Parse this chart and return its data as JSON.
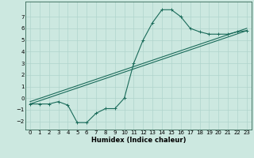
{
  "title": "",
  "xlabel": "Humidex (Indice chaleur)",
  "bg_color": "#cce8e0",
  "grid_color": "#b0d4cc",
  "line_color": "#1a6b5a",
  "xlim": [
    -0.5,
    23.5
  ],
  "ylim": [
    -2.7,
    8.3
  ],
  "xticks": [
    0,
    1,
    2,
    3,
    4,
    5,
    6,
    7,
    8,
    9,
    10,
    11,
    12,
    13,
    14,
    15,
    16,
    17,
    18,
    19,
    20,
    21,
    22,
    23
  ],
  "yticks": [
    -2,
    -1,
    0,
    1,
    2,
    3,
    4,
    5,
    6,
    7
  ],
  "line1_x": [
    0,
    1,
    2,
    3,
    4,
    5,
    6,
    7,
    8,
    9,
    10,
    11,
    12,
    13,
    14,
    15,
    16,
    17,
    18,
    19,
    20,
    21,
    22,
    23
  ],
  "line1_y": [
    -0.5,
    -0.5,
    -0.5,
    -0.3,
    -0.6,
    -2.1,
    -2.1,
    -1.3,
    -0.9,
    -0.9,
    0.0,
    3.0,
    5.0,
    6.5,
    7.6,
    7.6,
    7.0,
    6.0,
    5.7,
    5.5,
    5.5,
    5.5,
    5.7,
    5.8
  ],
  "line2_x": [
    0,
    23
  ],
  "line2_y": [
    -0.5,
    5.8
  ],
  "line3_x": [
    0,
    23
  ],
  "line3_y": [
    -0.3,
    6.0
  ],
  "marker": "+"
}
